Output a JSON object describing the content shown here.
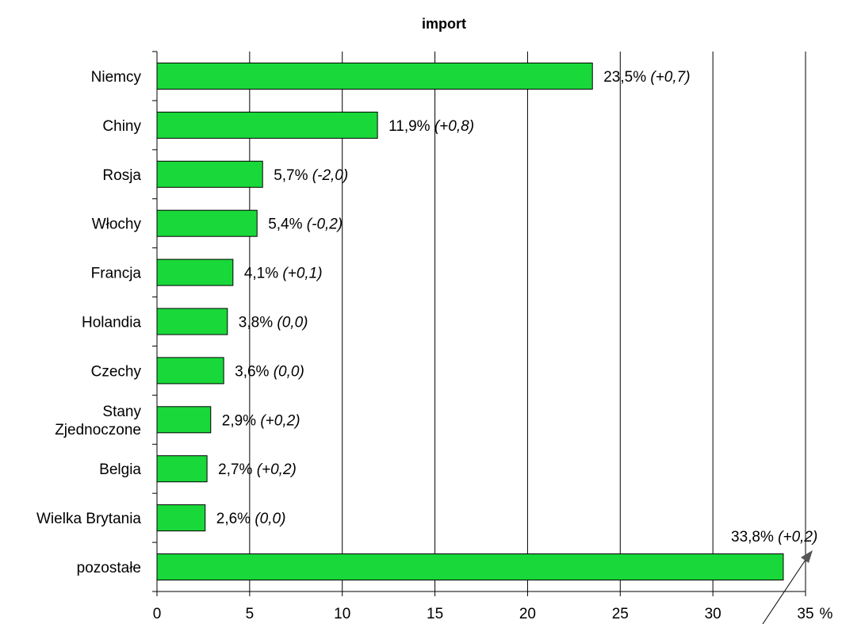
{
  "chart_data": {
    "type": "bar",
    "orientation": "horizontal",
    "title": "import",
    "xlabel": "",
    "ylabel": "",
    "x_unit": "%",
    "xlim": [
      0,
      35
    ],
    "x_ticks": [
      0,
      5,
      10,
      15,
      20,
      25,
      30,
      35
    ],
    "grid": "vertical",
    "bar_color": "#19d83a",
    "categories": [
      [
        "Niemcy"
      ],
      [
        "Chiny"
      ],
      [
        "Rosja"
      ],
      [
        "Włochy"
      ],
      [
        "Francja"
      ],
      [
        "Holandia"
      ],
      [
        "Czechy"
      ],
      [
        "Stany",
        "Zjednoczone"
      ],
      [
        "Belgia"
      ],
      [
        "Wielka Brytania"
      ],
      [
        "pozostałe"
      ]
    ],
    "values": [
      23.5,
      11.9,
      5.7,
      5.4,
      4.1,
      3.8,
      3.6,
      2.9,
      2.7,
      2.6,
      33.8
    ],
    "value_labels": [
      "23,5%",
      "11,9%",
      "5,7%",
      "5,4%",
      "4,1%",
      "3,8%",
      "3,6%",
      "2,9%",
      "2,7%",
      "2,6%",
      "33,8%"
    ],
    "change_labels": [
      "(+0,7)",
      "(+0,8)",
      "(-2,0)",
      "(-0,2)",
      "(+0,1)",
      "(0,0)",
      "(0,0)",
      "(+0,2)",
      "(+0,2)",
      "(0,0)",
      "(+0,2)"
    ]
  }
}
